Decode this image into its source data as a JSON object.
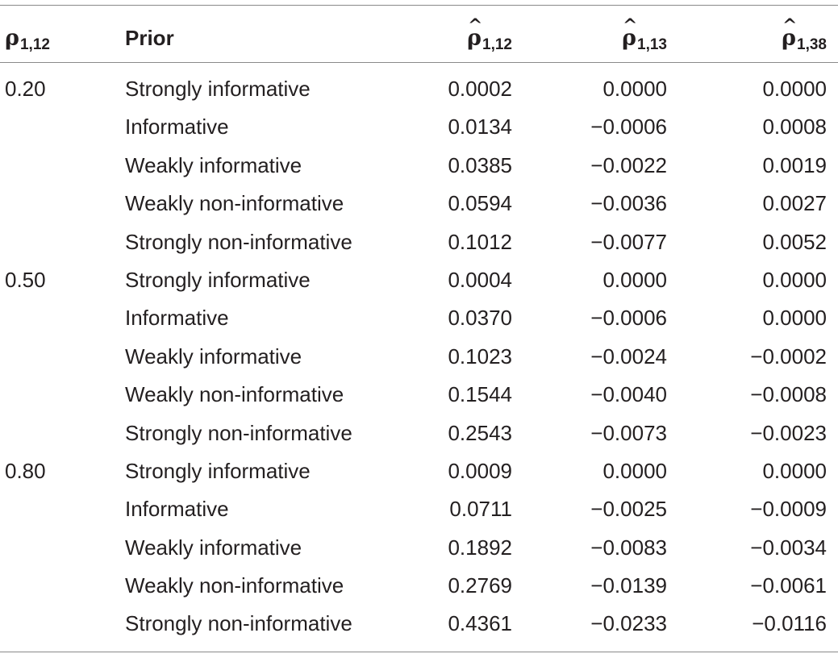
{
  "header": {
    "rho_symbol": "ρ",
    "rho_sub": "1,12",
    "prior": "Prior",
    "col1_symbol": "ρ",
    "col1_sub": "1,12",
    "col2_symbol": "ρ",
    "col2_sub": "1,13",
    "col3_symbol": "ρ",
    "col3_sub": "1,38",
    "hat": "^"
  },
  "rows": [
    {
      "rho": "0.20",
      "prior": "Strongly informative",
      "v1": "0.0002",
      "v2": "0.0000",
      "v3": "0.0000"
    },
    {
      "rho": "",
      "prior": "Informative",
      "v1": "0.0134",
      "v2": "−0.0006",
      "v3": "0.0008"
    },
    {
      "rho": "",
      "prior": "Weakly informative",
      "v1": "0.0385",
      "v2": "−0.0022",
      "v3": "0.0019"
    },
    {
      "rho": "",
      "prior": "Weakly non-informative",
      "v1": "0.0594",
      "v2": "−0.0036",
      "v3": "0.0027"
    },
    {
      "rho": "",
      "prior": "Strongly non-informative",
      "v1": "0.1012",
      "v2": "−0.0077",
      "v3": "0.0052"
    },
    {
      "rho": "0.50",
      "prior": "Strongly informative",
      "v1": "0.0004",
      "v2": "0.0000",
      "v3": "0.0000"
    },
    {
      "rho": "",
      "prior": "Informative",
      "v1": "0.0370",
      "v2": "−0.0006",
      "v3": "0.0000"
    },
    {
      "rho": "",
      "prior": "Weakly informative",
      "v1": "0.1023",
      "v2": "−0.0024",
      "v3": "−0.0002"
    },
    {
      "rho": "",
      "prior": "Weakly non-informative",
      "v1": "0.1544",
      "v2": "−0.0040",
      "v3": "−0.0008"
    },
    {
      "rho": "",
      "prior": "Strongly non-informative",
      "v1": "0.2543",
      "v2": "−0.0073",
      "v3": "−0.0023"
    },
    {
      "rho": "0.80",
      "prior": "Strongly informative",
      "v1": "0.0009",
      "v2": "0.0000",
      "v3": "0.0000"
    },
    {
      "rho": "",
      "prior": "Informative",
      "v1": "0.0711",
      "v2": "−0.0025",
      "v3": "−0.0009"
    },
    {
      "rho": "",
      "prior": "Weakly informative",
      "v1": "0.1892",
      "v2": "−0.0083",
      "v3": "−0.0034"
    },
    {
      "rho": "",
      "prior": "Weakly non-informative",
      "v1": "0.2769",
      "v2": "−0.0139",
      "v3": "−0.0061"
    },
    {
      "rho": "",
      "prior": "Strongly non-informative",
      "v1": "0.4361",
      "v2": "−0.0233",
      "v3": "−0.0116"
    }
  ]
}
